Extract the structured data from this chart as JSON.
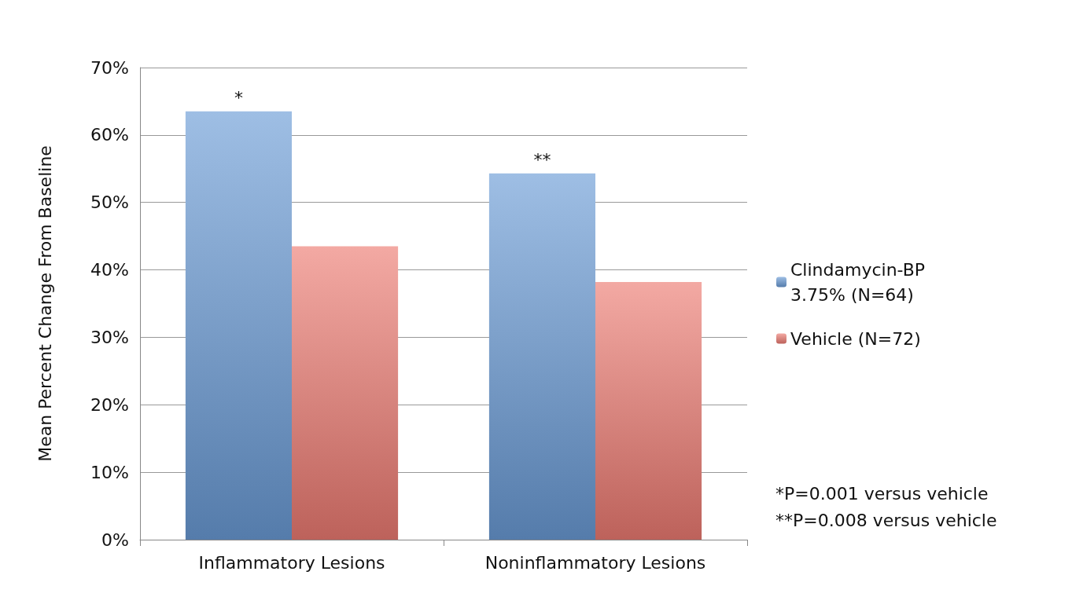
{
  "chart_data": {
    "type": "bar",
    "ylabel": "Mean Percent Change From Baseline",
    "categories": [
      "Inflammatory Lesions",
      "Noninflammatory Lesions"
    ],
    "series": [
      {
        "name": "Clindamycin-BP 3.75% (N=64)",
        "color": "#6a9bd6",
        "values": [
          63.5,
          54.3
        ]
      },
      {
        "name": "Vehicle (N=72)",
        "color": "#ec7a72",
        "values": [
          43.5,
          38.2
        ]
      }
    ],
    "ylim": [
      0,
      70
    ],
    "yticks": [
      {
        "value": 0,
        "label": "0%"
      },
      {
        "value": 10,
        "label": "10%"
      },
      {
        "value": 20,
        "label": "20%"
      },
      {
        "value": 30,
        "label": "30%"
      },
      {
        "value": 40,
        "label": "40%"
      },
      {
        "value": 50,
        "label": "50%"
      },
      {
        "value": 60,
        "label": "60%"
      },
      {
        "value": 70,
        "label": "70%"
      }
    ],
    "grid": "y",
    "legend": "right",
    "annotations": [
      {
        "text": "*",
        "x": "Inflammatory Lesions",
        "y": 63.5
      },
      {
        "text": "**",
        "x": "Noninflammatory Lesions",
        "y": 54.3
      },
      "*P=0.001 versus vehicle",
      "**P=0.008 versus vehicle"
    ]
  }
}
